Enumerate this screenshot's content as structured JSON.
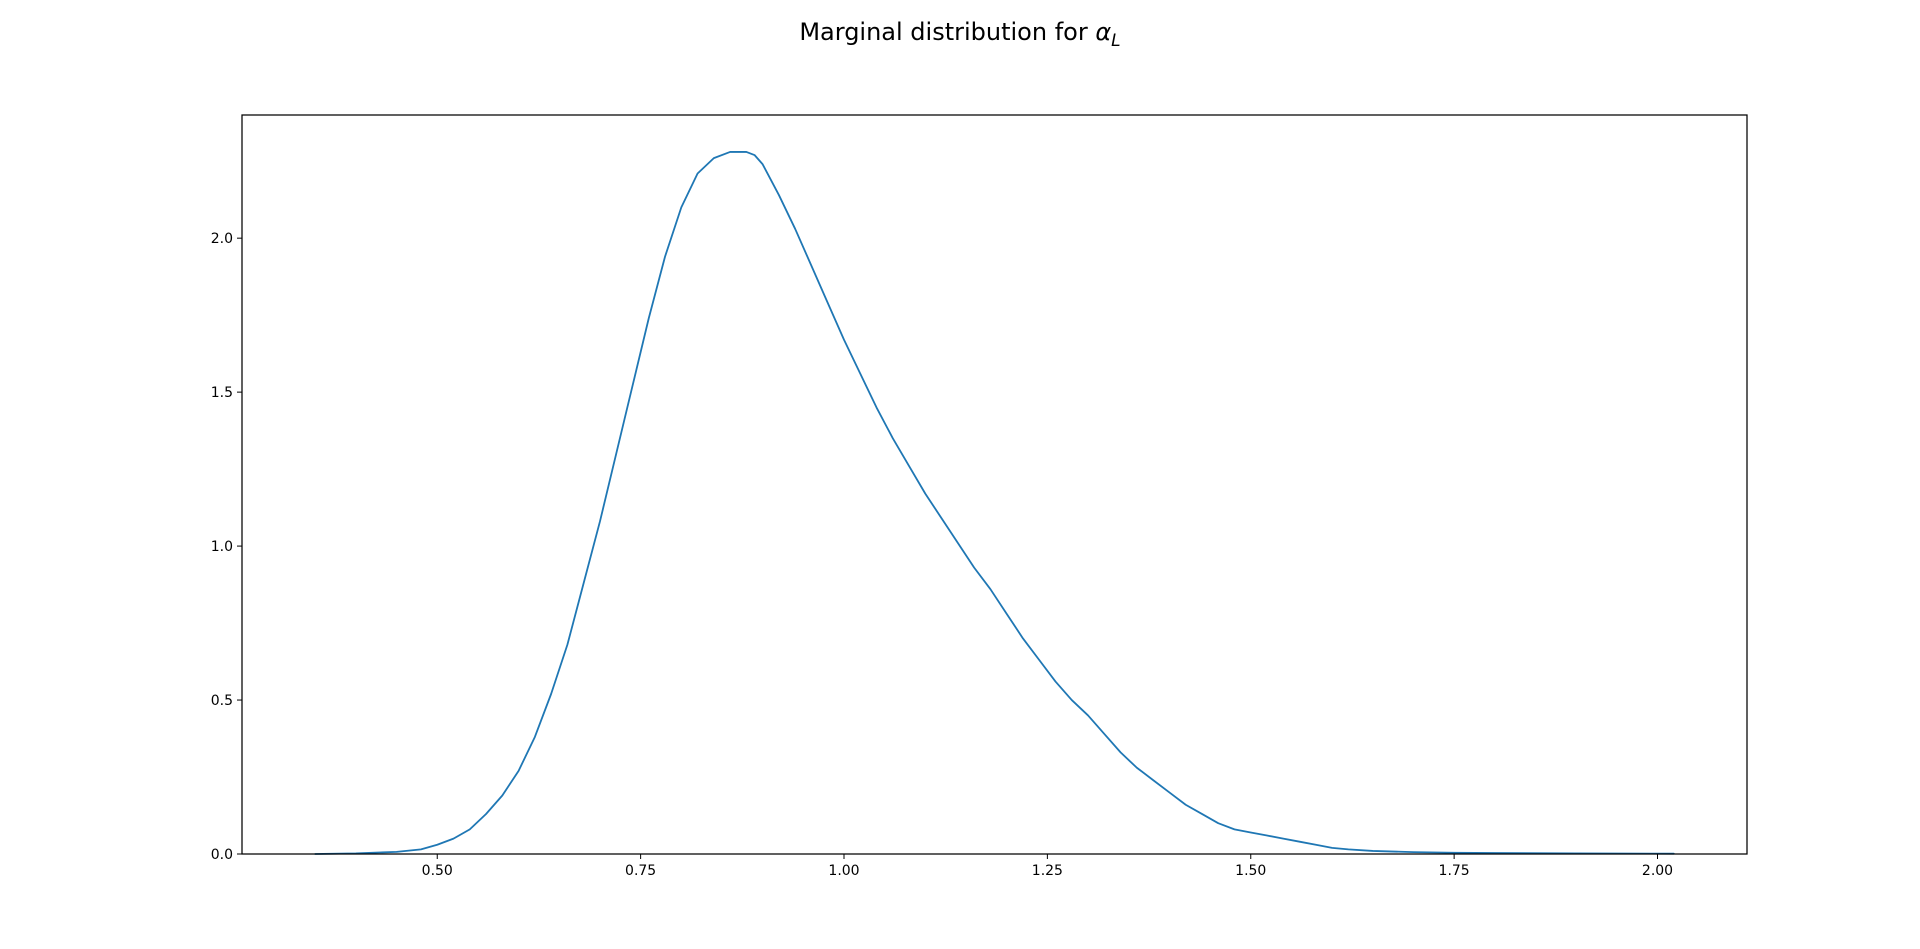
{
  "chart_data": {
    "type": "line",
    "title": {
      "text": "Marginal distribution for ",
      "math_symbol": "α",
      "math_subscript": "L"
    },
    "xlabel": "",
    "ylabel": "",
    "xlim": [
      0.26,
      2.11
    ],
    "ylim": [
      0.0,
      2.4
    ],
    "x_ticks": [
      0.5,
      0.75,
      1.0,
      1.25,
      1.5,
      1.75,
      2.0
    ],
    "x_tick_labels": [
      "0.50",
      "0.75",
      "1.00",
      "1.25",
      "1.50",
      "1.75",
      "2.00"
    ],
    "y_ticks": [
      0.0,
      0.5,
      1.0,
      1.5,
      2.0
    ],
    "y_tick_labels": [
      "0.0",
      "0.5",
      "1.0",
      "1.5",
      "2.0"
    ],
    "grid": false,
    "legend": false,
    "series": [
      {
        "color": "#1f77b4",
        "x": [
          0.35,
          0.4,
          0.45,
          0.48,
          0.5,
          0.52,
          0.54,
          0.56,
          0.58,
          0.6,
          0.62,
          0.64,
          0.66,
          0.68,
          0.7,
          0.72,
          0.74,
          0.76,
          0.78,
          0.8,
          0.82,
          0.84,
          0.86,
          0.87,
          0.88,
          0.89,
          0.9,
          0.92,
          0.94,
          0.96,
          0.98,
          1.0,
          1.02,
          1.04,
          1.06,
          1.08,
          1.1,
          1.12,
          1.14,
          1.16,
          1.18,
          1.2,
          1.22,
          1.24,
          1.26,
          1.28,
          1.3,
          1.32,
          1.34,
          1.36,
          1.38,
          1.4,
          1.42,
          1.44,
          1.46,
          1.48,
          1.5,
          1.52,
          1.54,
          1.56,
          1.58,
          1.6,
          1.62,
          1.65,
          1.7,
          1.75,
          1.8,
          1.9,
          2.02
        ],
        "y": [
          0.0,
          0.002,
          0.007,
          0.015,
          0.03,
          0.05,
          0.08,
          0.13,
          0.19,
          0.27,
          0.38,
          0.52,
          0.68,
          0.88,
          1.08,
          1.3,
          1.52,
          1.74,
          1.94,
          2.1,
          2.21,
          2.26,
          2.28,
          2.28,
          2.28,
          2.27,
          2.24,
          2.14,
          2.03,
          1.91,
          1.79,
          1.67,
          1.56,
          1.45,
          1.35,
          1.26,
          1.17,
          1.09,
          1.01,
          0.93,
          0.86,
          0.78,
          0.7,
          0.63,
          0.56,
          0.5,
          0.45,
          0.39,
          0.33,
          0.28,
          0.24,
          0.2,
          0.16,
          0.13,
          0.1,
          0.08,
          0.07,
          0.06,
          0.05,
          0.04,
          0.03,
          0.02,
          0.015,
          0.01,
          0.006,
          0.004,
          0.003,
          0.002,
          0.001
        ]
      }
    ]
  }
}
